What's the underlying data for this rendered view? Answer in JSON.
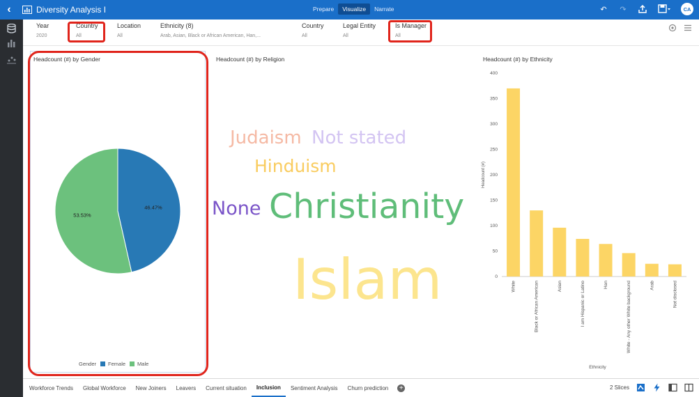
{
  "app": {
    "title": "Diversity Analysis I",
    "modes": [
      "Prepare",
      "Visualize",
      "Narrate"
    ],
    "active_mode": "Visualize",
    "avatar_initials": "CA",
    "accent_color": "#1a6fc9"
  },
  "filters": [
    {
      "label": "Year",
      "value": "2020"
    },
    {
      "label": "Country",
      "value": "All"
    },
    {
      "label": "Location",
      "value": "All"
    },
    {
      "label": "Ethnicity (8)",
      "value": "Arab, Asian, Black or African American, Han,..."
    },
    {
      "label": "Country",
      "value": "All"
    },
    {
      "label": "Legal Entity",
      "value": "All"
    },
    {
      "label": "Is Manager",
      "value": "All"
    }
  ],
  "panels": {
    "gender_title": "Headcount (#) by Gender",
    "religion_title": "Headcount (#) by Religion",
    "ethnicity_title": "Headcount (#) by Ethnicity"
  },
  "chart_data": [
    {
      "type": "pie",
      "title": "Headcount (#) by Gender",
      "legend_title": "Gender",
      "legend_position": "bottom",
      "slices": [
        {
          "name": "Female",
          "value": 46.47,
          "label": "46.47%",
          "color": "#2879b5"
        },
        {
          "name": "Male",
          "value": 53.53,
          "label": "53.53%",
          "color": "#6cc17d"
        }
      ]
    },
    {
      "type": "wordcloud",
      "title": "Headcount (#) by Religion",
      "words": [
        {
          "text": "Judaism",
          "color": "#f5b9a4"
        },
        {
          "text": "Not stated",
          "color": "#d3c4f2"
        },
        {
          "text": "Hinduism",
          "color": "#f9cc5f"
        },
        {
          "text": "None",
          "color": "#7b55c8"
        },
        {
          "text": "Christianity",
          "color": "#5fbd79"
        },
        {
          "text": "Islam",
          "color": "#fce58e"
        }
      ]
    },
    {
      "type": "bar",
      "title": "Headcount (#) by Ethnicity",
      "xlabel": "Ethnicity",
      "ylabel": "Headcount (#)",
      "ylim": [
        0,
        400
      ],
      "yticks": [
        0,
        50,
        100,
        150,
        200,
        250,
        300,
        350,
        400
      ],
      "categories": [
        "White",
        "Black or African American",
        "Asian",
        "I am Hispanic or Latino",
        "Han",
        "White - Any other White background",
        "Arab",
        "Not disclosed"
      ],
      "values": [
        370,
        130,
        96,
        74,
        64,
        46,
        25,
        24
      ],
      "color": "#fcd565"
    }
  ],
  "bottom_tabs": [
    "Workforce Trends",
    "Global Workforce",
    "New Joiners",
    "Leavers",
    "Current situation",
    "Inclusion",
    "Sentiment Analysis",
    "Churn prediction"
  ],
  "active_tab": "Inclusion",
  "slices_count": "2 Slices"
}
